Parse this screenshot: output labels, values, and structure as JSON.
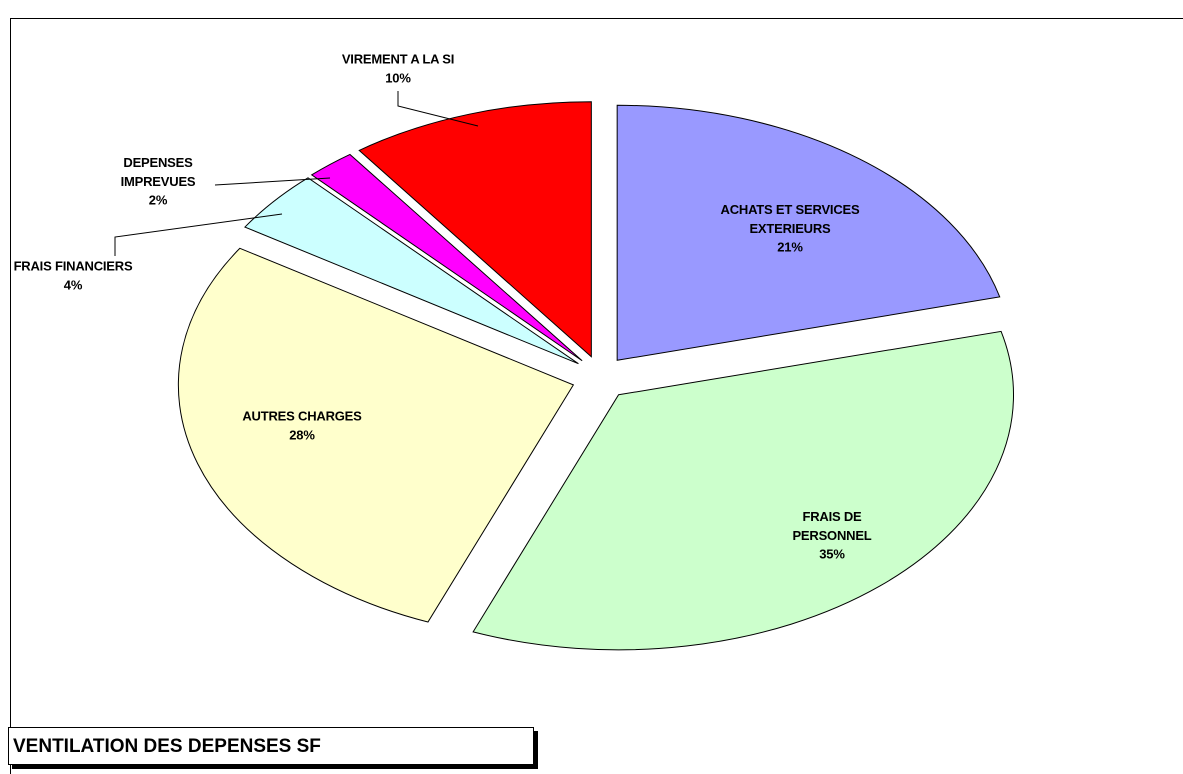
{
  "chart_data": {
    "type": "pie",
    "title": "VENTILATION DES DEPENSES SF",
    "categories": [
      "ACHATS ET SERVICES EXTERIEURS",
      "FRAIS DE PERSONNEL",
      "AUTRES CHARGES",
      "FRAIS FINANCIERS",
      "DEPENSES IMPREVUES",
      "VIREMENT A LA SI"
    ],
    "values": [
      21,
      35,
      28,
      4,
      2,
      10
    ],
    "value_labels": [
      "21%",
      "35%",
      "28%",
      "4%",
      "2%",
      "10%"
    ],
    "colors": [
      "#9999ff",
      "#ccffcc",
      "#ffffcc",
      "#ccffff",
      "#ff00ff",
      "#ff0000"
    ]
  }
}
